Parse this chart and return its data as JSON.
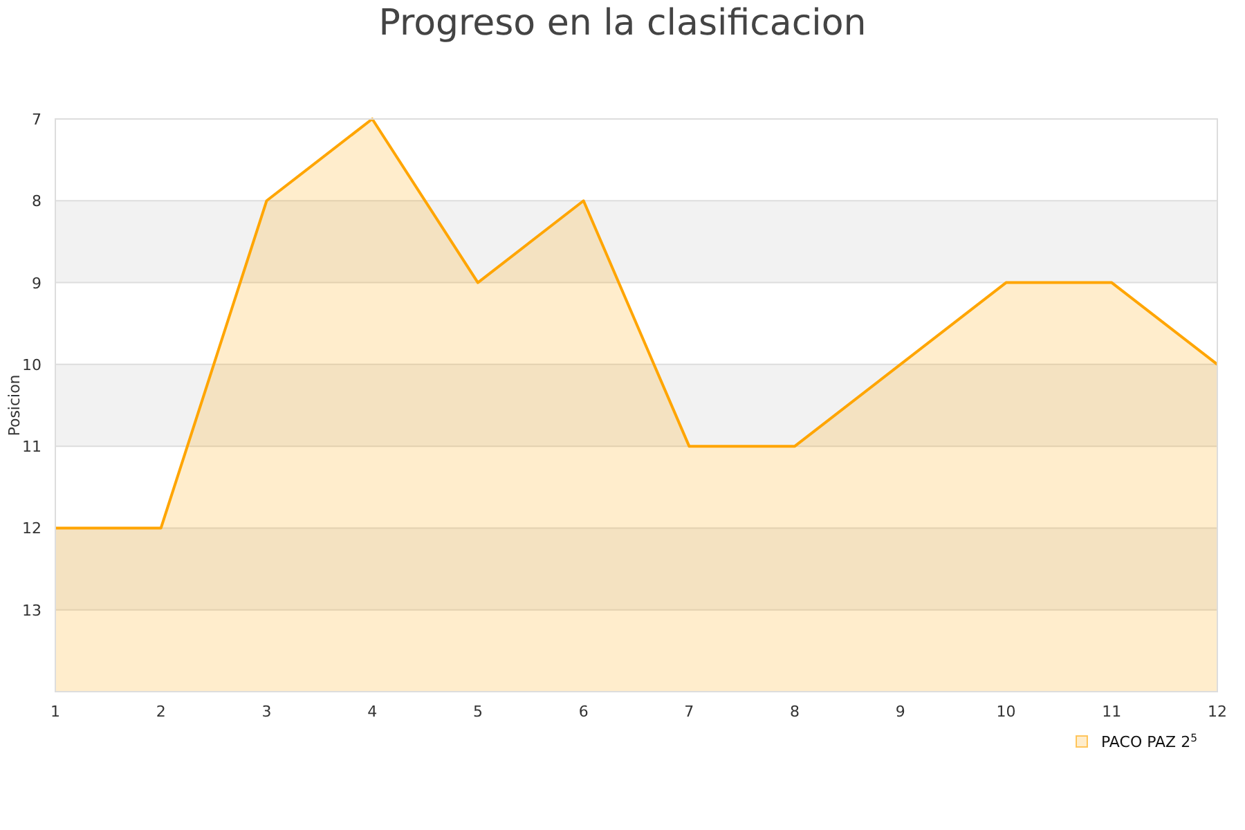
{
  "chart_data": {
    "type": "area",
    "title": "Progreso en la clasificacion",
    "ylabel": "Posicion",
    "x": [
      1,
      2,
      3,
      4,
      5,
      6,
      7,
      8,
      9,
      10,
      11,
      12
    ],
    "series": [
      {
        "name": "PACO PAZ 2$^{5}$",
        "color": "#ffa500",
        "values": [
          12,
          12,
          8,
          7,
          9,
          8,
          11,
          11,
          10,
          9,
          9,
          10
        ]
      }
    ],
    "xlim": [
      1,
      12
    ],
    "xticks": [
      1,
      2,
      3,
      4,
      5,
      6,
      7,
      8,
      9,
      10,
      11,
      12
    ],
    "ylim": [
      14,
      7
    ],
    "yticks": [
      7,
      8,
      9,
      10,
      11,
      12,
      13
    ],
    "bands": [
      {
        "axis": "y",
        "from": 8,
        "to": 9,
        "color": "#f2f2f2"
      },
      {
        "axis": "y",
        "from": 10,
        "to": 11,
        "color": "#f2f2f2"
      },
      {
        "axis": "y",
        "from": 12,
        "to": 13,
        "color": "#f2f2f2"
      }
    ],
    "grid": "y",
    "legend": "bottom right"
  }
}
